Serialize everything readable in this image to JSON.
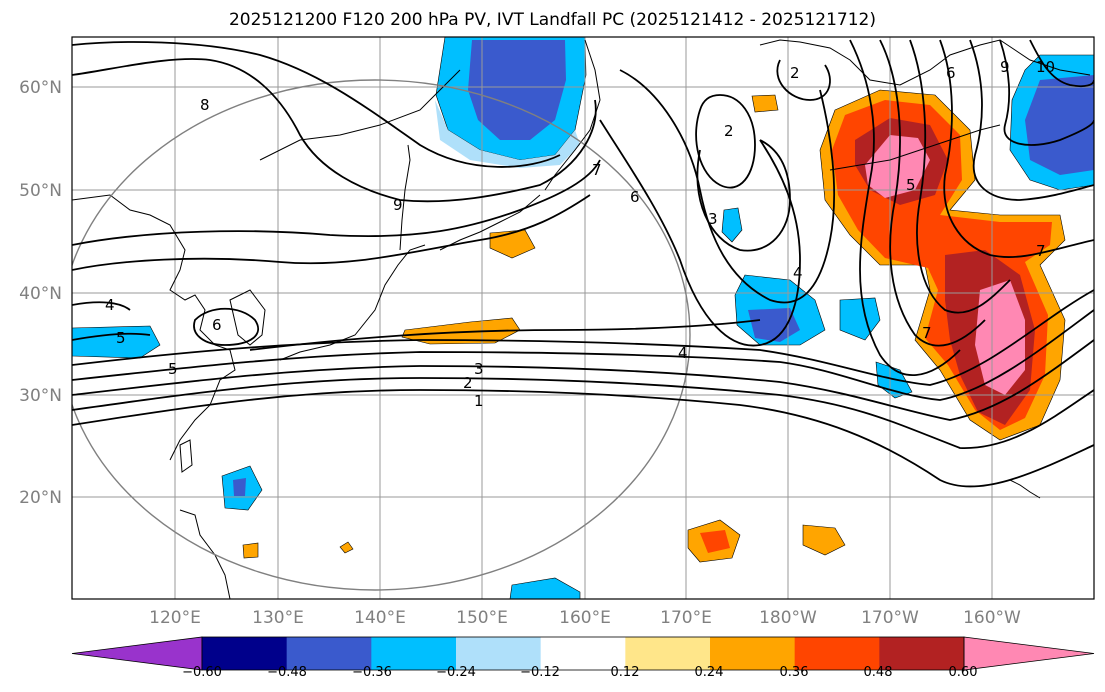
{
  "title": "2025121200 F120 200 hPa PV, IVT Landfall PC (2025121412 - 2025121712)",
  "map": {
    "lon_ticks": [
      "120°E",
      "130°E",
      "140°E",
      "150°E",
      "160°E",
      "170°E",
      "180°W",
      "170°W",
      "160°W"
    ],
    "lat_ticks": [
      "60°N",
      "50°N",
      "40°N",
      "30°N",
      "20°N"
    ],
    "lon_range": [
      110,
      210
    ],
    "lat_range": [
      10,
      65
    ],
    "pv_contour_labels": [
      "1",
      "2",
      "3",
      "4",
      "4",
      "5",
      "5",
      "6",
      "6",
      "7",
      "7",
      "8",
      "9",
      "9",
      "10",
      "2",
      "2",
      "3",
      "4",
      "5",
      "6",
      "7"
    ]
  },
  "colorbar": {
    "ticks": [
      "−0.60",
      "−0.48",
      "−0.36",
      "−0.24",
      "−0.12",
      "0.12",
      "0.24",
      "0.36",
      "0.48",
      "0.60"
    ],
    "colors": [
      "#9933cc",
      "#00008b",
      "#3a5acd",
      "#00bfff",
      "#afe0fa",
      "#ffffff",
      "#ffe68a",
      "#ffa500",
      "#ff4500",
      "#b22222",
      "#ff88b3"
    ]
  }
}
